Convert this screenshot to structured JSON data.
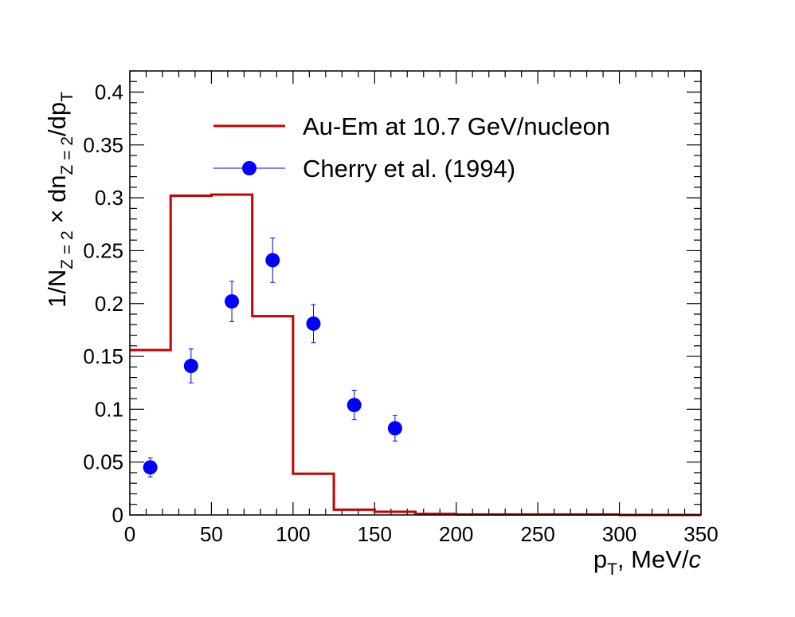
{
  "chart_data": {
    "type": "scatter",
    "xlabel": {
      "main": "p",
      "sub": "T",
      "rest": ", MeV/",
      "italic": "c"
    },
    "ylabel": {
      "p1": "1/N",
      "s1": "Z = 2",
      "p2": " × dn",
      "s2": "Z = 2",
      "p3": "/dp",
      "s3": "T"
    },
    "xlim": [
      0,
      350
    ],
    "ylim": [
      0,
      0.42
    ],
    "xticks": [
      {
        "value": 0,
        "label": "0"
      },
      {
        "value": 50,
        "label": "50"
      },
      {
        "value": 100,
        "label": "100"
      },
      {
        "value": 150,
        "label": "150"
      },
      {
        "value": 200,
        "label": "200"
      },
      {
        "value": 250,
        "label": "250"
      },
      {
        "value": 300,
        "label": "300"
      },
      {
        "value": 350,
        "label": "350"
      }
    ],
    "yticks": [
      {
        "value": 0,
        "label": "0"
      },
      {
        "value": 0.05,
        "label": "0.05"
      },
      {
        "value": 0.1,
        "label": "0.1"
      },
      {
        "value": 0.15,
        "label": "0.15"
      },
      {
        "value": 0.2,
        "label": "0.2"
      },
      {
        "value": 0.25,
        "label": "0.25"
      },
      {
        "value": 0.3,
        "label": "0.3"
      },
      {
        "value": 0.35,
        "label": "0.35"
      },
      {
        "value": 0.4,
        "label": "0.4"
      }
    ],
    "legend_position": "top-center",
    "series": [
      {
        "name": "Au-Em at 10.7 GeV/nucleon",
        "kind": "histogram",
        "color": "#cc0000",
        "bins": [
          {
            "lo": 0,
            "hi": 25,
            "y": 0.156
          },
          {
            "lo": 25,
            "hi": 50,
            "y": 0.302
          },
          {
            "lo": 50,
            "hi": 75,
            "y": 0.303
          },
          {
            "lo": 75,
            "hi": 100,
            "y": 0.188
          },
          {
            "lo": 100,
            "hi": 125,
            "y": 0.039
          },
          {
            "lo": 125,
            "hi": 150,
            "y": 0.005
          },
          {
            "lo": 150,
            "hi": 175,
            "y": 0.003
          },
          {
            "lo": 175,
            "hi": 200,
            "y": 0.001
          },
          {
            "lo": 200,
            "hi": 300,
            "y": 0.0005
          },
          {
            "lo": 300,
            "hi": 350,
            "y": 0.0
          }
        ]
      },
      {
        "name": "Cherry et al. (1994)",
        "kind": "points",
        "color": "#0000ff",
        "points": [
          {
            "x": 12.5,
            "y": 0.045,
            "err": 0.009
          },
          {
            "x": 37.5,
            "y": 0.141,
            "err": 0.016
          },
          {
            "x": 62.5,
            "y": 0.202,
            "err": 0.019
          },
          {
            "x": 87.5,
            "y": 0.241,
            "err": 0.021
          },
          {
            "x": 112.5,
            "y": 0.181,
            "err": 0.018
          },
          {
            "x": 137.5,
            "y": 0.104,
            "err": 0.014
          },
          {
            "x": 162.5,
            "y": 0.082,
            "err": 0.012
          }
        ]
      }
    ]
  }
}
